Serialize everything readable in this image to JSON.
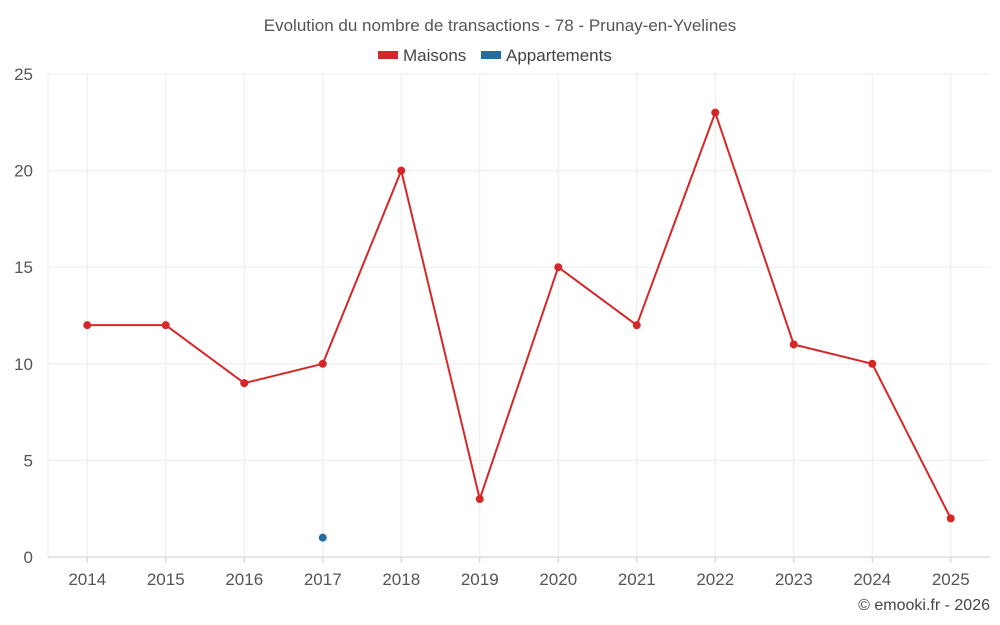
{
  "chart_data": {
    "type": "line",
    "title": "Evolution du nombre de transactions - 78 - Prunay-en-Yvelines",
    "categories": [
      "2014",
      "2015",
      "2016",
      "2017",
      "2018",
      "2019",
      "2020",
      "2021",
      "2022",
      "2023",
      "2024",
      "2025"
    ],
    "series": [
      {
        "name": "Maisons",
        "color": "#d62728",
        "values": [
          12,
          12,
          9,
          10,
          20,
          3,
          15,
          12,
          23,
          11,
          10,
          2
        ]
      },
      {
        "name": "Appartements",
        "color": "#1f6fa5",
        "values": [
          null,
          null,
          null,
          1,
          null,
          null,
          null,
          null,
          null,
          null,
          null,
          null
        ]
      }
    ],
    "ylim": [
      0,
      25
    ],
    "yticks": [
      0,
      5,
      10,
      15,
      20,
      25
    ],
    "grid": true,
    "legend_position": "top-center",
    "xlabel": "",
    "ylabel": ""
  },
  "credit": "© emooki.fr - 2026"
}
